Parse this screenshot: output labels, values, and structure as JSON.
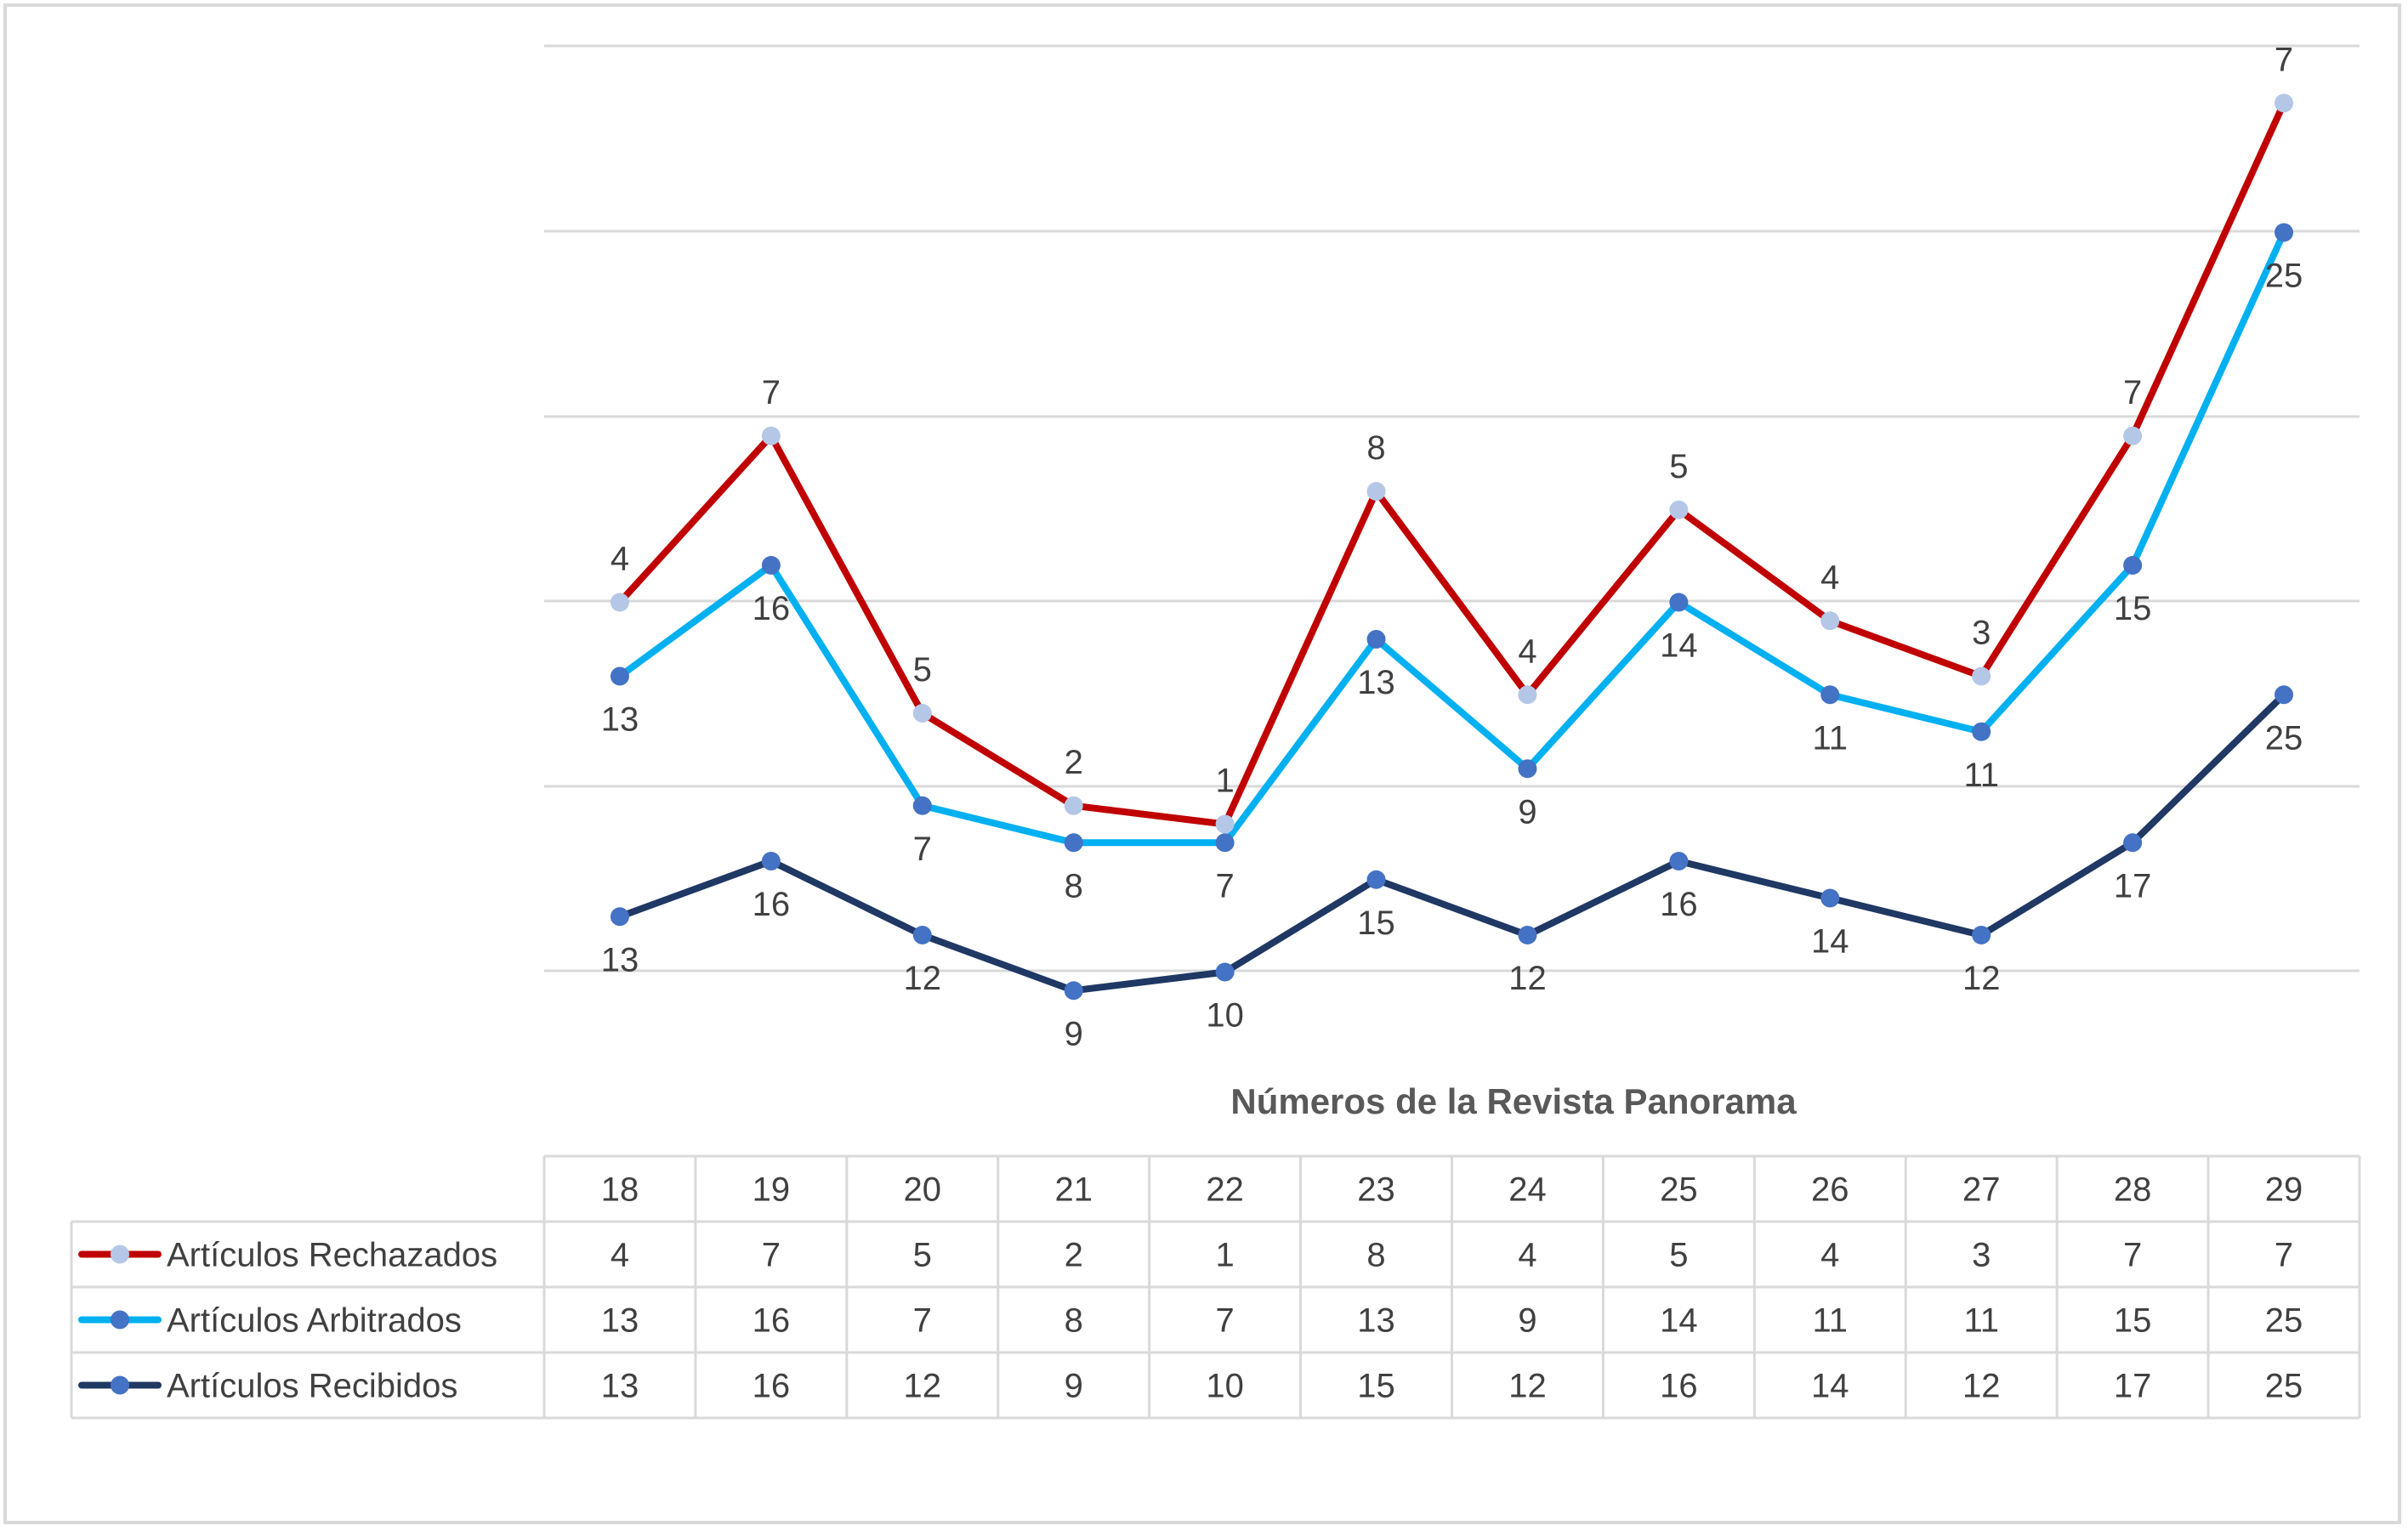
{
  "chart_data": {
    "type": "line",
    "title": "",
    "xlabel": "Números de la Revista Panorama",
    "ylabel": "",
    "categories": [
      "18",
      "19",
      "20",
      "21",
      "22",
      "23",
      "24",
      "25",
      "26",
      "27",
      "28",
      "29"
    ],
    "stacked": true,
    "grid": true,
    "legend": "data table (left)",
    "series": [
      {
        "name": "Artículos Recibidos",
        "color": "#1f3864",
        "marker_color": "#4472c4",
        "values": [
          13,
          16,
          12,
          9,
          10,
          15,
          12,
          16,
          14,
          12,
          17,
          25
        ]
      },
      {
        "name": "Artículos Arbitrados",
        "color": "#00b0f0",
        "marker_color": "#4472c4",
        "values": [
          13,
          16,
          7,
          8,
          7,
          13,
          9,
          14,
          11,
          11,
          15,
          25
        ]
      },
      {
        "name": "Artículos Rechazados",
        "color": "#c00000",
        "marker_color": "#b4c7e7",
        "values": [
          4,
          7,
          5,
          2,
          1,
          8,
          4,
          5,
          4,
          3,
          7,
          7
        ]
      }
    ],
    "table_row_order": [
      "Artículos Rechazados",
      "Artículos Arbitrados",
      "Artículos Recibidos"
    ]
  }
}
